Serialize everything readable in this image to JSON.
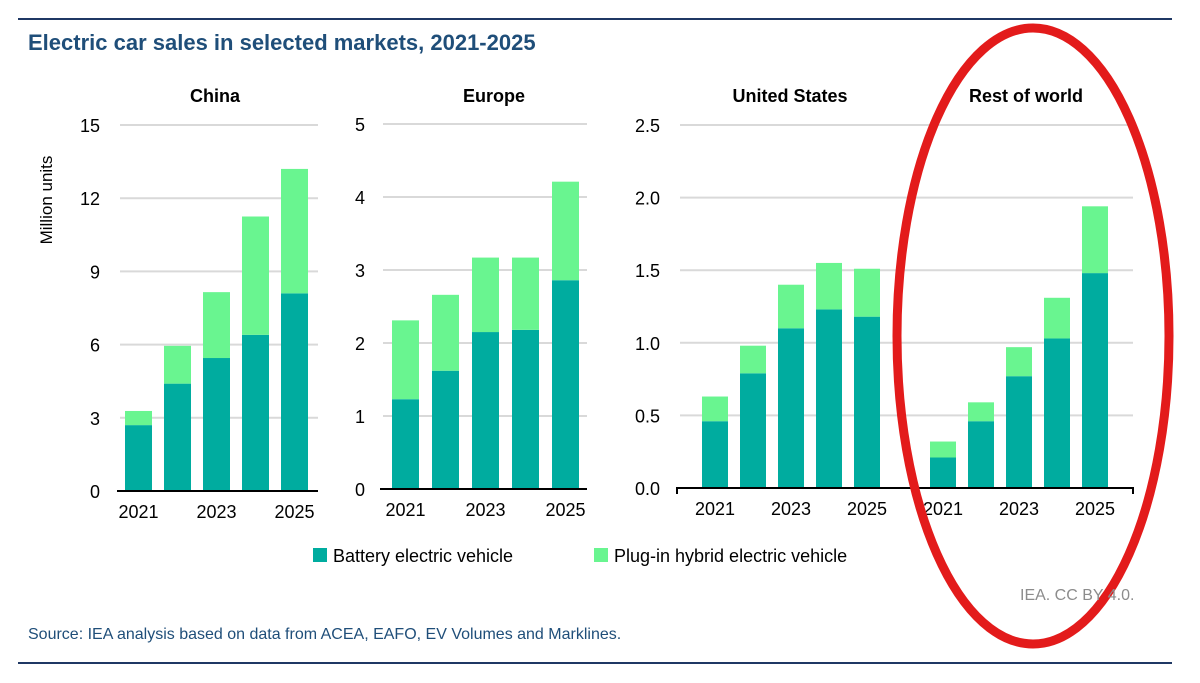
{
  "title": "Electric car sales in selected markets, 2021-2025",
  "source": "Source: IEA analysis based on data from ACEA, EAFO, EV Volumes and Marklines.",
  "credit": "IEA. CC BY 4.0.",
  "colors": {
    "bev": "#00ac9f",
    "phev": "#69f590",
    "title": "#1f4e79",
    "annotation": "#e31b1b"
  },
  "annotation": {
    "shape": "ellipse",
    "highlights": "Rest of world"
  },
  "chart_data": {
    "type": "bar",
    "stacked": true,
    "ylabel": "Million units",
    "legend": {
      "placement": "bottom",
      "entries": [
        "Battery electric vehicle",
        "Plug-in hybrid electric vehicle"
      ]
    },
    "categories": [
      "2021",
      "2022",
      "2023",
      "2024",
      "2025"
    ],
    "tick_labels": [
      "2021",
      "",
      "2023",
      "",
      "2025"
    ],
    "grid": true,
    "panels": [
      {
        "name": "China",
        "ylim": [
          0,
          15
        ],
        "yticks": [
          "0",
          "3",
          "6",
          "9",
          "12",
          "15"
        ],
        "series": [
          {
            "name": "Battery electric vehicle",
            "values": [
              2.7,
              4.4,
              5.45,
              6.4,
              8.1
            ]
          },
          {
            "name": "Plug-in hybrid electric vehicle",
            "values": [
              0.58,
              1.55,
              2.7,
              4.85,
              5.1
            ]
          }
        ]
      },
      {
        "name": "Europe",
        "ylim": [
          0,
          5
        ],
        "yticks": [
          "0",
          "1",
          "2",
          "3",
          "4",
          "5"
        ],
        "series": [
          {
            "name": "Battery electric vehicle",
            "values": [
              1.23,
              1.62,
              2.15,
              2.18,
              2.86
            ]
          },
          {
            "name": "Plug-in hybrid electric vehicle",
            "values": [
              1.08,
              1.04,
              1.02,
              0.99,
              1.35
            ]
          }
        ]
      },
      {
        "name": "United States",
        "ylim": [
          0,
          2.5
        ],
        "yticks": [
          "0.0",
          "0.5",
          "1.0",
          "1.5",
          "2.0",
          "2.5"
        ],
        "series": [
          {
            "name": "Battery electric vehicle",
            "values": [
              0.46,
              0.79,
              1.1,
              1.23,
              1.18
            ]
          },
          {
            "name": "Plug-in hybrid electric vehicle",
            "values": [
              0.17,
              0.19,
              0.3,
              0.32,
              0.33
            ]
          }
        ]
      },
      {
        "name": "Rest of world",
        "ylim": [
          0,
          2.5
        ],
        "yticks": [],
        "series": [
          {
            "name": "Battery electric vehicle",
            "values": [
              0.21,
              0.46,
              0.77,
              1.03,
              1.48
            ]
          },
          {
            "name": "Plug-in hybrid electric vehicle",
            "values": [
              0.11,
              0.13,
              0.2,
              0.28,
              0.46
            ]
          }
        ]
      }
    ]
  }
}
